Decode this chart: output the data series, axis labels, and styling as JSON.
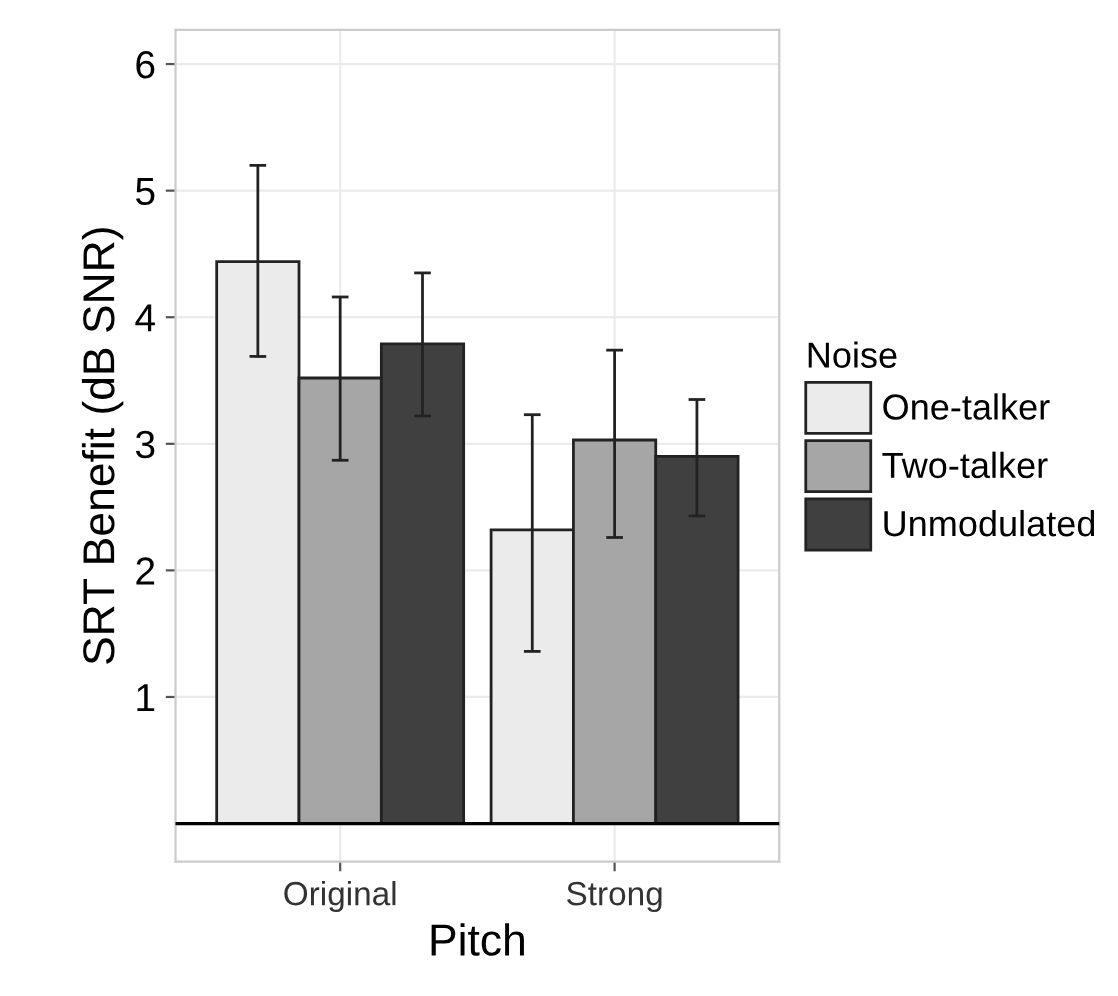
{
  "chart_data": {
    "type": "bar",
    "xlabel": "Pitch",
    "ylabel": "SRT Benefit (dB SNR)",
    "legend_title": "Noise",
    "categories": [
      "Original",
      "Strong"
    ],
    "series": [
      {
        "name": "One-talker",
        "color": "#ebebeb",
        "values": [
          4.44,
          2.32
        ],
        "errors": [
          [
            3.69,
            5.2
          ],
          [
            1.36,
            3.23
          ]
        ]
      },
      {
        "name": "Two-talker",
        "color": "#a6a6a6",
        "values": [
          3.52,
          3.03
        ],
        "errors": [
          [
            2.87,
            4.16
          ],
          [
            2.26,
            3.74
          ]
        ]
      },
      {
        "name": "Unmodulated",
        "color": "#404040",
        "values": [
          3.79,
          2.9
        ],
        "errors": [
          [
            3.22,
            4.35
          ],
          [
            2.43,
            3.35
          ]
        ]
      }
    ],
    "ylim": [
      -0.3,
      6.27
    ],
    "yticks": [
      1,
      2,
      3,
      4,
      5,
      6
    ],
    "grid": true,
    "legend": "right",
    "ref_lines": [
      {
        "axis": "y",
        "value": 0,
        "color": "#000000"
      }
    ]
  }
}
